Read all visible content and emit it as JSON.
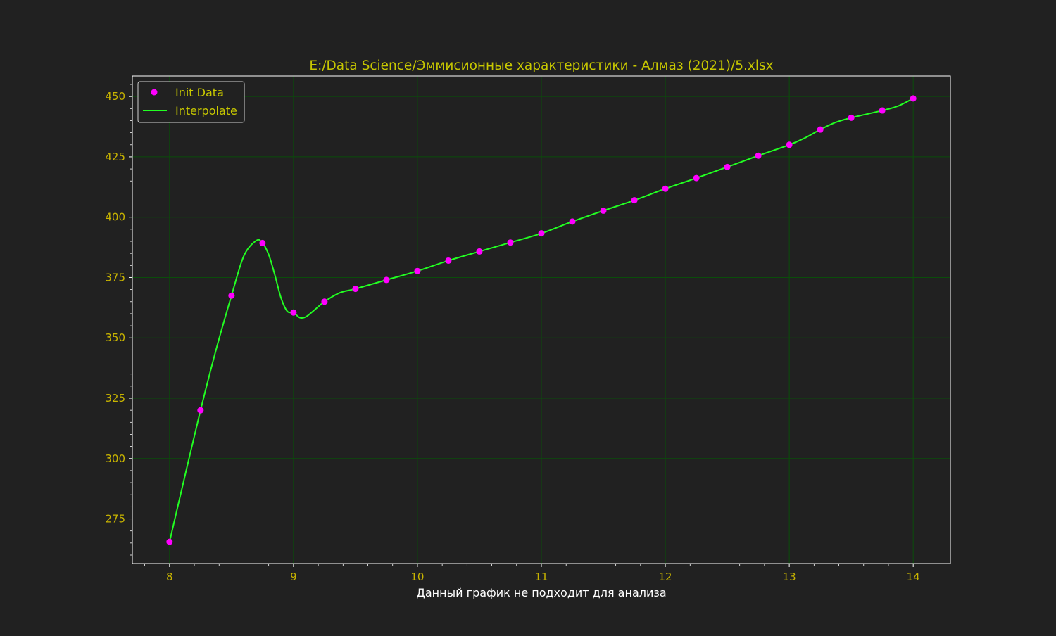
{
  "colors": {
    "background": "#212121",
    "axes_text": "#c8b400",
    "title_text": "#c8c800",
    "xlabel_text": "#ffffff",
    "grid": "#0a4d0a",
    "spine": "#ffffff",
    "points": "#ff00ff",
    "line": "#22ff22"
  },
  "chart_data": {
    "type": "line",
    "title": "E:/Data Science/Эммисионные характеристики - Алмаз (2021)/5.xlsx",
    "xlabel": "Данный график не подходит для анализа",
    "ylabel": "",
    "xlim": [
      7.7,
      14.3
    ],
    "ylim": [
      256.5,
      458.5
    ],
    "xticks": [
      8,
      9,
      10,
      11,
      12,
      13,
      14
    ],
    "yticks": [
      275,
      300,
      325,
      350,
      375,
      400,
      425,
      450
    ],
    "grid": true,
    "legend_position": "upper-left",
    "series": [
      {
        "name": "Init Data",
        "kind": "scatter",
        "x": [
          8.0,
          8.25,
          8.5,
          8.75,
          9.0,
          9.25,
          9.5,
          9.75,
          10.0,
          10.25,
          10.5,
          10.75,
          11.0,
          11.25,
          11.5,
          11.75,
          12.0,
          12.25,
          12.5,
          12.75,
          13.0,
          13.25,
          13.5,
          13.75,
          14.0
        ],
        "y": [
          265.5,
          320.0,
          367.5,
          389.3,
          360.5,
          365.0,
          370.3,
          374.0,
          377.7,
          382.0,
          385.8,
          389.5,
          393.3,
          398.2,
          402.7,
          407.0,
          411.8,
          416.2,
          420.8,
          425.5,
          430.0,
          436.3,
          441.2,
          444.2,
          449.2
        ]
      },
      {
        "name": "Interpolate",
        "kind": "line",
        "x": [
          8.0,
          8.125,
          8.25,
          8.375,
          8.5,
          8.6,
          8.7,
          8.75,
          8.8,
          8.85,
          8.9,
          8.95,
          9.0,
          9.05,
          9.1,
          9.175,
          9.25,
          9.375,
          9.5,
          9.75,
          10.0,
          10.25,
          10.5,
          10.75,
          11.0,
          11.25,
          11.5,
          11.75,
          12.0,
          12.25,
          12.5,
          12.75,
          13.0,
          13.125,
          13.25,
          13.375,
          13.5,
          13.625,
          13.75,
          13.875,
          14.0
        ],
        "y": [
          265.5,
          293.0,
          320.0,
          345.0,
          367.5,
          384.0,
          390.3,
          389.3,
          384.5,
          376.0,
          366.5,
          361.0,
          360.5,
          358.4,
          358.7,
          361.8,
          365.0,
          368.7,
          370.3,
          374.0,
          377.7,
          382.0,
          385.8,
          389.5,
          393.3,
          398.2,
          402.7,
          407.0,
          411.8,
          416.2,
          420.8,
          425.5,
          430.0,
          432.8,
          436.3,
          439.3,
          441.2,
          442.7,
          444.2,
          446.0,
          449.2
        ]
      }
    ]
  }
}
